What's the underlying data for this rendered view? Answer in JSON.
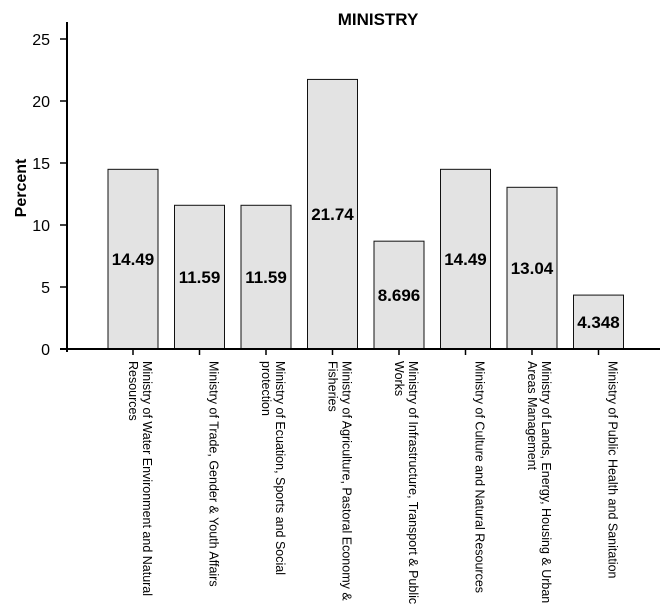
{
  "chart_data": {
    "type": "bar",
    "title": "MINISTRY",
    "xlabel": "",
    "ylabel": "Percent",
    "ylim": [
      0,
      25
    ],
    "yticks": [
      0,
      5,
      10,
      15,
      20,
      25
    ],
    "grid": false,
    "categories": [
      [
        "Ministry of Water Environment and Natural",
        "Resources"
      ],
      [
        "Ministry of Trade, Gender & Youth Affairs"
      ],
      [
        "Ministry of Ecuation, Sports and Social",
        "protection"
      ],
      [
        "Ministry of Agriculture, Pastoral Economy &",
        "Fisheries"
      ],
      [
        "Ministry of Infrastructure, Transport & Public",
        "Works"
      ],
      [
        "Ministry of Culture and Natural Resources"
      ],
      [
        "Ministry of Lands, Energy, Housing & Urban",
        "Areas Management"
      ],
      [
        "Ministry of Public Health and Sanitation"
      ]
    ],
    "values": [
      14.49,
      11.59,
      11.59,
      21.74,
      8.696,
      14.49,
      13.04,
      4.348
    ],
    "data_labels": [
      "14.49",
      "11.59",
      "11.59",
      "21.74",
      "8.696",
      "14.49",
      "13.04",
      "4.348"
    ],
    "bar_color": "#e3e3e3"
  }
}
